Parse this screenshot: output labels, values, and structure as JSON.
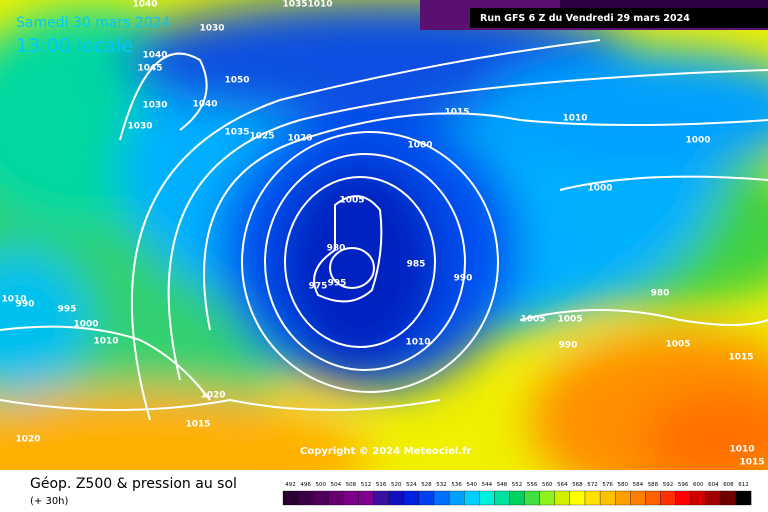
{
  "header": {
    "date": "Samedi 30 mars 2024",
    "time": "13:00 locale",
    "run": "Run GFS 6 Z du Vendredi 29 mars 2024"
  },
  "copyright": "Copyright © 2024 Meteociel.fr",
  "footer": {
    "title": "Géop. Z500 & pression au sol",
    "lead": "(+ 30h)"
  },
  "isobars": [
    1040,
    1035,
    1030,
    1040,
    1045,
    1050,
    1030,
    1040,
    1030,
    1035,
    1025,
    1020,
    1015,
    1010,
    1000,
    1000,
    1000,
    1005,
    980,
    985,
    990,
    995,
    975,
    980,
    1010,
    990,
    995,
    1000,
    1005,
    1005,
    1010,
    1010,
    990,
    1005,
    1015,
    1020,
    1015,
    1020,
    1010,
    1015,
    1010
  ],
  "scale": [
    {
      "value": 492,
      "color": "#2a0030"
    },
    {
      "value": 496,
      "color": "#3c0048"
    },
    {
      "value": 500,
      "color": "#50005c"
    },
    {
      "value": 504,
      "color": "#660070"
    },
    {
      "value": 508,
      "color": "#7a0088"
    },
    {
      "value": 512,
      "color": "#800090"
    },
    {
      "value": 516,
      "color": "#3a10a0"
    },
    {
      "value": 520,
      "color": "#1010c0"
    },
    {
      "value": 524,
      "color": "#0020e0"
    },
    {
      "value": 528,
      "color": "#0040f0"
    },
    {
      "value": 532,
      "color": "#0070ff"
    },
    {
      "value": 536,
      "color": "#00a0ff"
    },
    {
      "value": 540,
      "color": "#00d0ff"
    },
    {
      "value": 544,
      "color": "#00f0e0"
    },
    {
      "value": 548,
      "color": "#00e0a0"
    },
    {
      "value": 552,
      "color": "#00d060"
    },
    {
      "value": 556,
      "color": "#40e040"
    },
    {
      "value": 560,
      "color": "#90f020"
    },
    {
      "value": 564,
      "color": "#d0f000"
    },
    {
      "value": 568,
      "color": "#ffff00"
    },
    {
      "value": 572,
      "color": "#ffe000"
    },
    {
      "value": 576,
      "color": "#ffc000"
    },
    {
      "value": 580,
      "color": "#ffa000"
    },
    {
      "value": 584,
      "color": "#ff8000"
    },
    {
      "value": 588,
      "color": "#ff6000"
    },
    {
      "value": 592,
      "color": "#ff3000"
    },
    {
      "value": 596,
      "color": "#ff0000"
    },
    {
      "value": 600,
      "color": "#d00000"
    },
    {
      "value": 604,
      "color": "#a00000"
    },
    {
      "value": 608,
      "color": "#700000"
    },
    {
      "value": 612,
      "color": "#000000"
    }
  ]
}
